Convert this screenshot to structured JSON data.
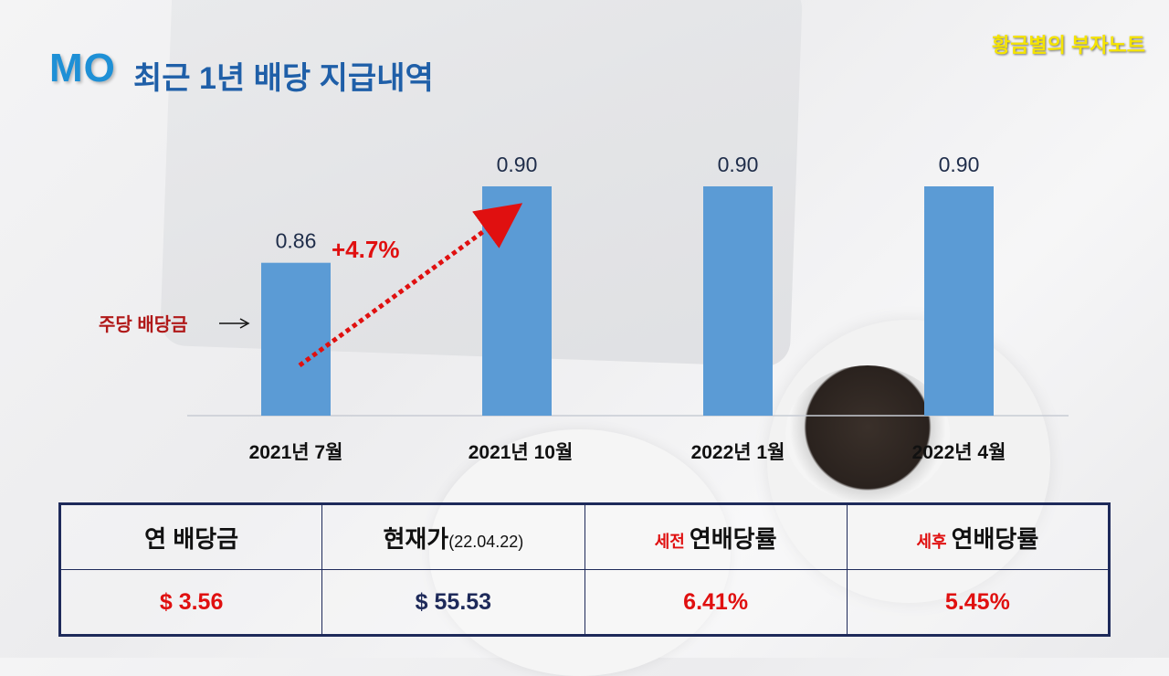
{
  "title": {
    "ticker": "MO",
    "text": "최근 1년 배당 지급내역"
  },
  "brand": "황금별의 부자노트",
  "chart_data": {
    "type": "bar",
    "categories": [
      "2021년 7월",
      "2021년 10월",
      "2022년 1월",
      "2022년 4월"
    ],
    "values": [
      0.86,
      0.9,
      0.9,
      0.9
    ],
    "value_labels": [
      "0.86",
      "0.90",
      "0.90",
      "0.90"
    ],
    "bar_color": "#5b9bd5",
    "ylim": [
      0.78,
      0.915
    ],
    "annotations": {
      "growth": "+4.7%",
      "per_share_label": "주당 배당금",
      "arrow_color": "#e01010"
    }
  },
  "table": {
    "headers": [
      {
        "main": "연 배당금",
        "sub": "",
        "prefix": ""
      },
      {
        "main": "현재가",
        "sub": "(22.04.22)",
        "prefix": ""
      },
      {
        "main": "연배당률",
        "sub": "",
        "prefix": "세전 "
      },
      {
        "main": "연배당률",
        "sub": "",
        "prefix": "세후 "
      }
    ],
    "values": [
      {
        "text": "$ 3.56",
        "color": "#e01010"
      },
      {
        "text": "$ 55.53",
        "color": "#1e2a5a"
      },
      {
        "text": "6.41%",
        "color": "#e01010"
      },
      {
        "text": "5.45%",
        "color": "#e01010"
      }
    ]
  }
}
